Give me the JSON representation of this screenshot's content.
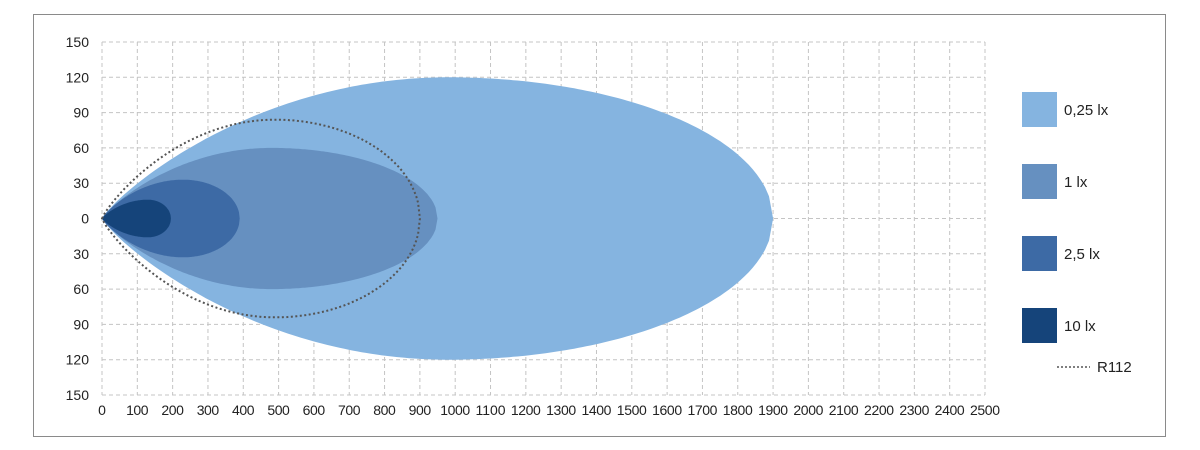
{
  "chart_data": {
    "type": "area",
    "title": "",
    "xlabel": "",
    "ylabel": "",
    "xlim": [
      0,
      2500
    ],
    "ylim": [
      -150,
      150
    ],
    "x_ticks": [
      "0",
      "100",
      "200",
      "300",
      "400",
      "500",
      "600",
      "700",
      "800",
      "900",
      "1000",
      "1100",
      "1200",
      "1300",
      "1400",
      "1500",
      "1600",
      "1700",
      "1800",
      "1900",
      "2000",
      "2100",
      "2200",
      "2300",
      "2400",
      "2500"
    ],
    "y_ticks": [
      "150",
      "120",
      "90",
      "60",
      "30",
      "0",
      "30",
      "60",
      "90",
      "120",
      "150"
    ],
    "grid": true,
    "legend_position": "right",
    "series": [
      {
        "name": "0,25 lx",
        "color": "#85b4e0",
        "reach": 1900,
        "peak_x": 980,
        "half_width": 120
      },
      {
        "name": "1 lx",
        "color": "#6690c0",
        "reach": 950,
        "peak_x": 480,
        "half_width": 60
      },
      {
        "name": "2,5 lx",
        "color": "#3d6aa5",
        "reach": 390,
        "peak_x": 230,
        "half_width": 33
      },
      {
        "name": "10 lx",
        "color": "#15447a",
        "reach": 195,
        "peak_x": 130,
        "half_width": 16
      }
    ],
    "reference": {
      "name": "R112",
      "style": "dotted",
      "color": "#555555",
      "reach": 900,
      "peak_x": 490,
      "half_width": 84
    }
  }
}
